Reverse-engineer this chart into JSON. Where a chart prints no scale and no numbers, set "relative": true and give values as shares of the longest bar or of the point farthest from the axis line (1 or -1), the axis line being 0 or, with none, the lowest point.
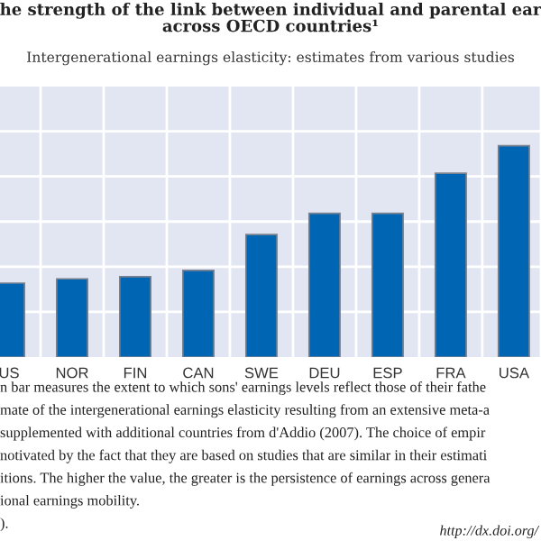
{
  "chart_data": {
    "type": "bar",
    "title": "he strength of the link between individual and parental ear\nacross OECD countries¹",
    "subtitle": "Intergenerational earnings elasticity: estimates from various studies",
    "categories": [
      "US",
      "NOR",
      "FIN",
      "CAN",
      "SWE",
      "DEU",
      "ESP",
      "FRA",
      "USA"
    ],
    "values": [
      0.35,
      0.37,
      0.38,
      0.41,
      0.58,
      0.68,
      0.68,
      0.87,
      1
    ],
    "color": "#0066b3",
    "relative": true,
    "grid": true,
    "tick_labels": "x",
    "annotations": [
      "n bar measures the extent to which sons' earnings levels reflect those of their fathe",
      "mate of the intergenerational earnings elasticity resulting from an extensive meta-a",
      "supplemented with additional countries from d'Addio (2007). The choice of empir",
      "notivated by the fact that they are based on studies that are similar in their estimati",
      "itions. The higher the value, the greater is the persistence of earnings across genera",
      "ional earnings mobility.",
      ").",
      "http://dx.doi.org/"
    ]
  }
}
